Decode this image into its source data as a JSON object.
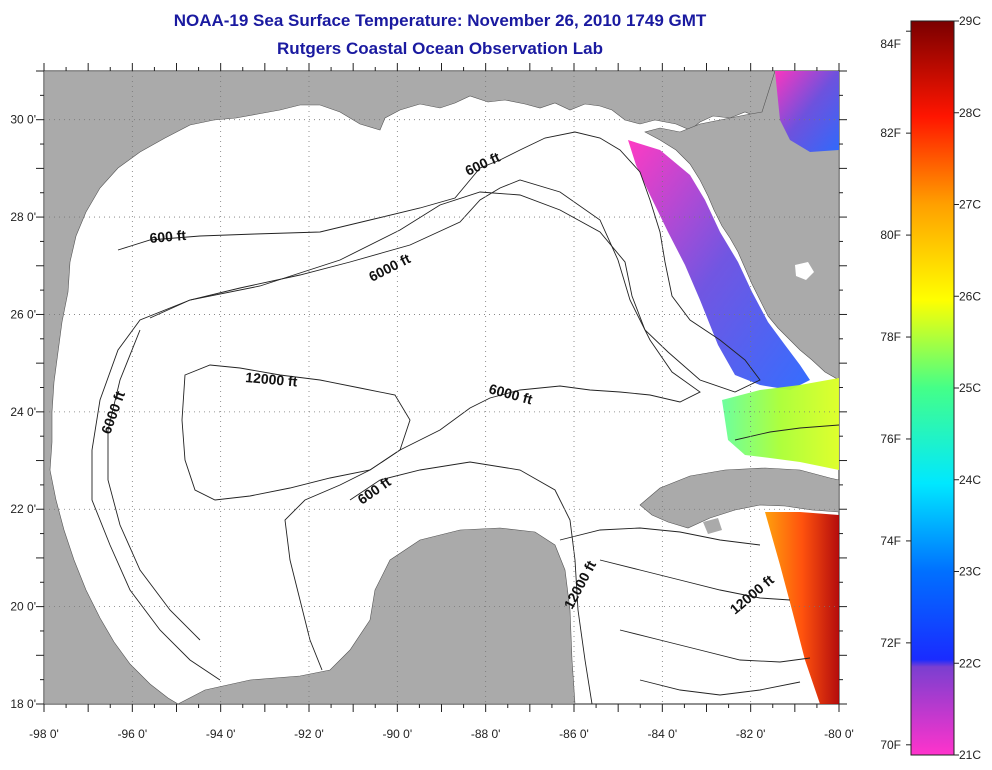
{
  "title": "NOAA-19 Sea Surface Temperature:  November 26, 2010 1749 GMT",
  "subtitle": "Rutgers Coastal Ocean Observation Lab",
  "map": {
    "lon_range": [
      -98,
      -80
    ],
    "lat_range": [
      18,
      31
    ],
    "lon_ticks": [
      "-98 0'",
      "-96 0'",
      "-94 0'",
      "-92 0'",
      "-90 0'",
      "-88 0'",
      "-86 0'",
      "-84 0'",
      "-82 0'",
      "-80 0'"
    ],
    "lat_ticks": [
      "18 0'",
      "20 0'",
      "22 0'",
      "24 0'",
      "26 0'",
      "28 0'",
      "30 0'"
    ],
    "land_color": "#aaaaaa",
    "water_color": "#ffffff",
    "grid": "dotted"
  },
  "contour_labels": [
    {
      "text": "600 ft"
    },
    {
      "text": "600 ft"
    },
    {
      "text": "6000 ft"
    },
    {
      "text": "6000 ft"
    },
    {
      "text": "12000 ft"
    },
    {
      "text": "6000 ft"
    },
    {
      "text": "600 ft"
    },
    {
      "text": "12000 ft"
    },
    {
      "text": "12000 ft"
    }
  ],
  "colorbar": {
    "fahrenheit": [
      "84F",
      "82F",
      "80F",
      "78F",
      "76F",
      "74F",
      "72F",
      "70F"
    ],
    "celsius": [
      "29C",
      "28C",
      "27C",
      "26C",
      "25C",
      "24C",
      "23C",
      "22C",
      "21C"
    ],
    "range_c": [
      21,
      29
    ],
    "colors": [
      "#ff33cc",
      "#7b3fd0",
      "#1a2bff",
      "#00a0ff",
      "#00ffee",
      "#55ff99",
      "#ffff00",
      "#ffa500",
      "#ff2200",
      "#7a0000"
    ]
  }
}
